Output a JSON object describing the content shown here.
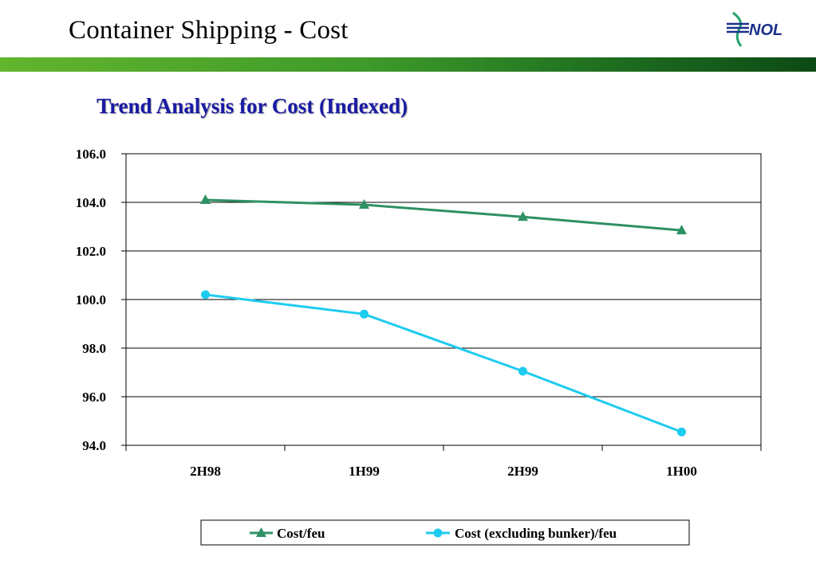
{
  "slide": {
    "title": "Container Shipping - Cost",
    "logo_text": "NOL"
  },
  "colors": {
    "bar_start": "#63b52d",
    "bar_end": "#0d4a14",
    "title_blue": "#1a1aa6",
    "series_cost": "#2e9163",
    "series_cost_ex": "#1ecbf0"
  },
  "chart_data": {
    "type": "line",
    "title": "Trend Analysis for Cost (Indexed)",
    "xlabel": "",
    "ylabel": "",
    "categories": [
      "2H98",
      "1H99",
      "2H99",
      "1H00"
    ],
    "ylim": [
      94.0,
      106.0
    ],
    "yticks": [
      "94.0",
      "96.0",
      "98.0",
      "100.0",
      "102.0",
      "104.0",
      "106.0"
    ],
    "grid": true,
    "legend_position": "bottom",
    "series": [
      {
        "name": "Cost/feu",
        "values": [
          104.1,
          103.9,
          103.4,
          102.85
        ],
        "color": "#2e9163",
        "marker": "triangle"
      },
      {
        "name": "Cost (excluding bunker)/feu",
        "values": [
          100.2,
          99.4,
          97.05,
          94.55
        ],
        "color": "#1ecbf0",
        "marker": "circle"
      }
    ]
  }
}
